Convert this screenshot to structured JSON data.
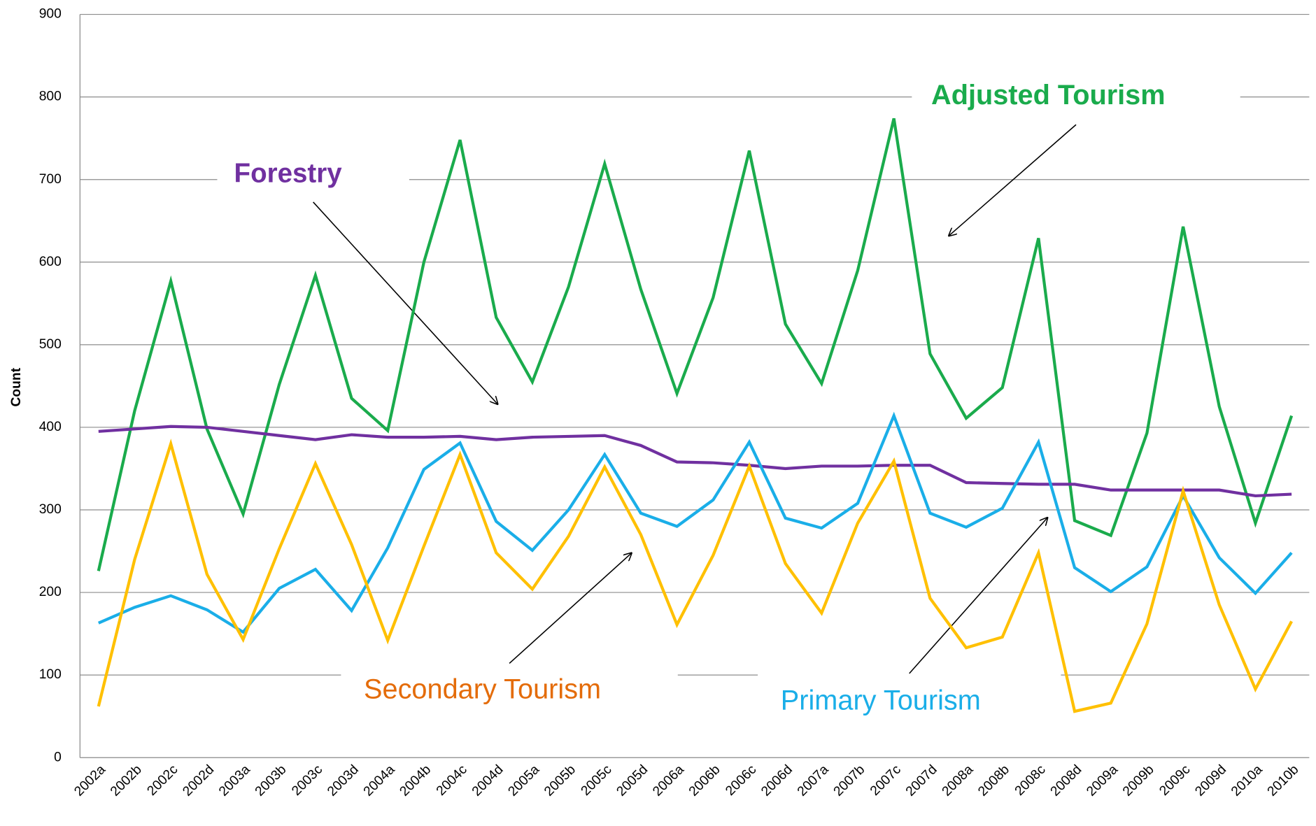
{
  "chart_data": {
    "type": "line",
    "y_label": "Count",
    "categories": [
      "2002a",
      "2002b",
      "2002c",
      "2002d",
      "2003a",
      "2003b",
      "2003c",
      "2003d",
      "2004a",
      "2004b",
      "2004c",
      "2004d",
      "2005a",
      "2005b",
      "2005c",
      "2005d",
      "2006a",
      "2006b",
      "2006c",
      "2006d",
      "2007a",
      "2007b",
      "2007c",
      "2007d",
      "2008a",
      "2008b",
      "2008c",
      "2008d",
      "2009a",
      "2009b",
      "2009c",
      "2009d",
      "2010a",
      "2010b"
    ],
    "series": [
      {
        "name": "Adjusted Tourism",
        "color": "#1aab4c",
        "values": [
          226,
          420,
          577,
          398,
          295,
          452,
          584,
          435,
          396,
          600,
          748,
          533,
          455,
          570,
          719,
          567,
          441,
          557,
          735,
          525,
          453,
          590,
          774,
          489,
          411,
          448,
          629,
          287,
          269,
          393,
          643,
          425,
          284,
          414
        ]
      },
      {
        "name": "Forestry",
        "color": "#7030a0",
        "values": [
          395,
          398,
          401,
          400,
          395,
          390,
          385,
          391,
          388,
          388,
          389,
          385,
          388,
          389,
          390,
          378,
          358,
          357,
          354,
          350,
          353,
          353,
          354,
          354,
          333,
          332,
          331,
          331,
          324,
          324,
          324,
          324,
          317,
          319
        ]
      },
      {
        "name": "Primary Tourism",
        "color": "#1aaee8",
        "values": [
          163,
          182,
          196,
          179,
          152,
          205,
          228,
          178,
          254,
          349,
          381,
          286,
          251,
          300,
          367,
          296,
          280,
          312,
          382,
          290,
          278,
          308,
          414,
          296,
          279,
          302,
          382,
          230,
          201,
          231,
          317,
          242,
          199,
          248
        ]
      },
      {
        "name": "Secondary Tourism",
        "color": "#ffc000",
        "values": [
          62,
          240,
          380,
          222,
          143,
          253,
          356,
          258,
          142,
          256,
          367,
          248,
          204,
          268,
          352,
          270,
          161,
          245,
          353,
          235,
          175,
          284,
          359,
          193,
          133,
          146,
          248,
          56,
          66,
          162,
          323,
          185,
          83,
          165
        ]
      }
    ],
    "label_colors": [
      "#1aab4c",
      "#7030a0",
      "#1aaee8",
      "#e46c0a"
    ],
    "ylim": [
      0,
      900
    ],
    "yticks": [
      0,
      100,
      200,
      300,
      400,
      500,
      600,
      700,
      800,
      900
    ],
    "grid": true
  }
}
